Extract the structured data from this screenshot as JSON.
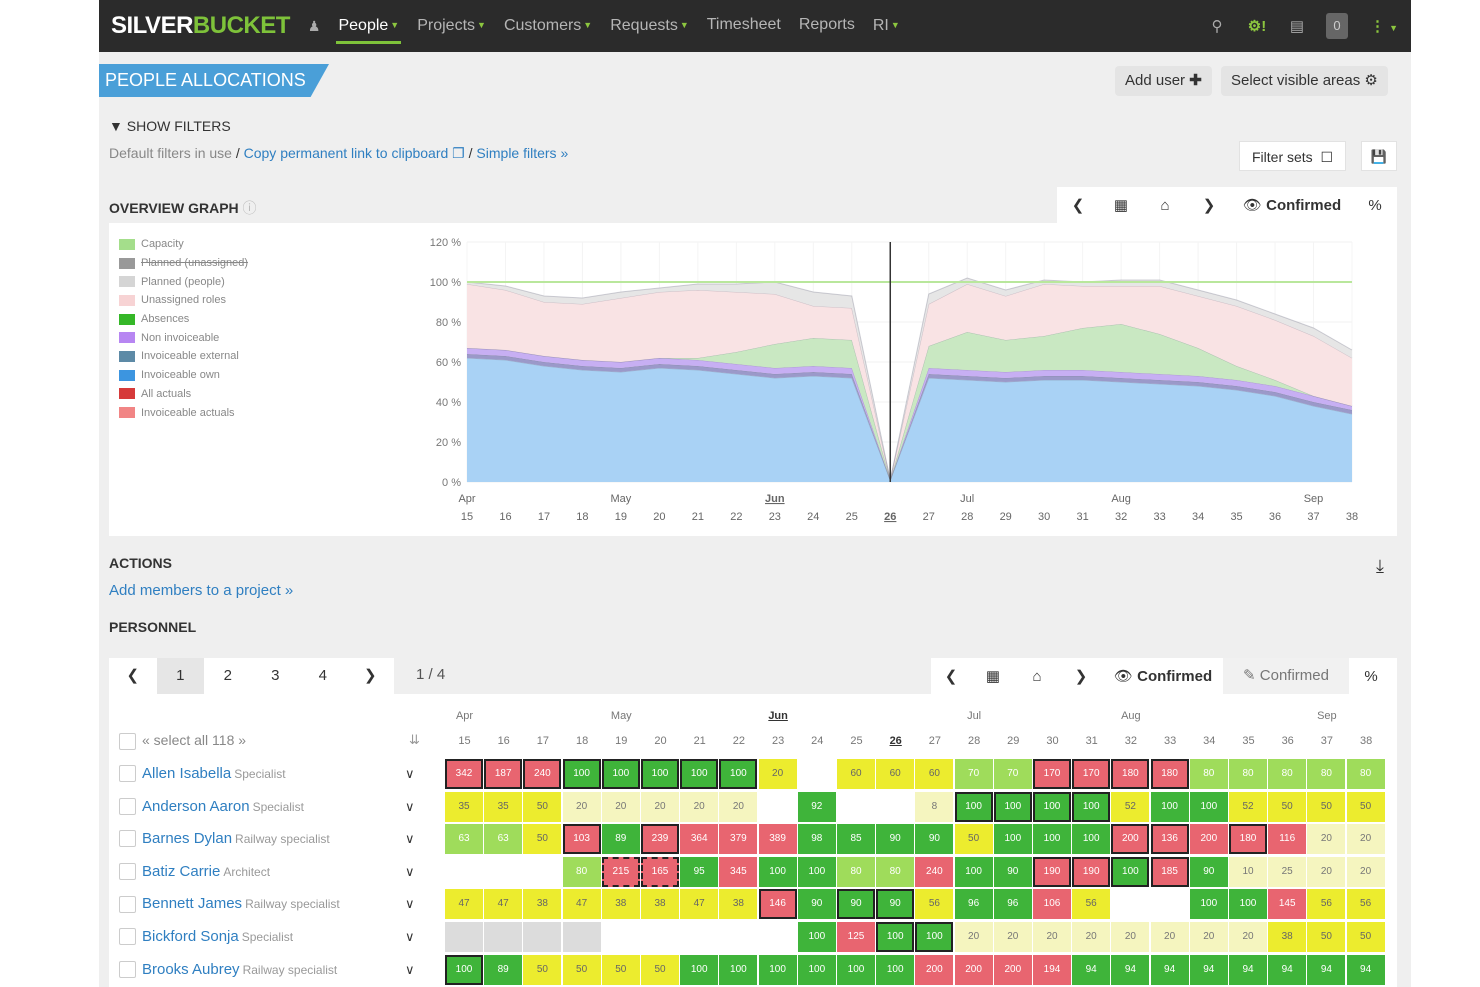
{
  "nav": {
    "logo_a": "SILVER",
    "logo_b": "BUCKET",
    "items": [
      {
        "label": "People",
        "dropdown": true,
        "active": true
      },
      {
        "label": "Projects",
        "dropdown": true
      },
      {
        "label": "Customers",
        "dropdown": true
      },
      {
        "label": "Requests",
        "dropdown": true
      },
      {
        "label": "Timesheet",
        "dropdown": false
      },
      {
        "label": "Reports",
        "dropdown": false
      },
      {
        "label": "RI",
        "dropdown": true
      }
    ],
    "right_icons": [
      "search-icon",
      "settings-alert-icon",
      "book-icon",
      "notifications-count",
      "more-menu-icon"
    ],
    "notification_count": "0"
  },
  "header": {
    "title": "PEOPLE ALLOCATIONS",
    "add_user": "Add user",
    "select_areas": "Select visible areas"
  },
  "filters": {
    "show_filters": "SHOW FILTERS",
    "default_text": "Default filters in use",
    "sep": "/",
    "copy_link": "Copy permanent link to clipboard",
    "simple_filters": "Simple filters »",
    "filter_sets": "Filter sets"
  },
  "overview": {
    "title": "OVERVIEW GRAPH",
    "mode": "Confirmed",
    "percent": "%"
  },
  "chart_data": {
    "type": "area",
    "ylim": [
      0,
      120
    ],
    "y_ticks": [
      "0 %",
      "20 %",
      "40 %",
      "60 %",
      "80 %",
      "100 %",
      "120 %"
    ],
    "weeks": [
      "15",
      "16",
      "17",
      "18",
      "19",
      "20",
      "21",
      "22",
      "23",
      "24",
      "25",
      "26",
      "27",
      "28",
      "29",
      "30",
      "31",
      "32",
      "33",
      "34",
      "35",
      "36",
      "37",
      "38"
    ],
    "months": [
      {
        "label": "Apr",
        "week": "15"
      },
      {
        "label": "May",
        "week": "19"
      },
      {
        "label": "Jun",
        "week": "23"
      },
      {
        "label": "Jul",
        "week": "28"
      },
      {
        "label": "Aug",
        "week": "32"
      },
      {
        "label": "Sep",
        "week": "37"
      }
    ],
    "current_week": "26",
    "capacity": 100,
    "series": [
      {
        "name": "Invoiceable own",
        "color": "#a9d2f5",
        "values": [
          62,
          61,
          58,
          56,
          55,
          57,
          56,
          54,
          52,
          53,
          52,
          1,
          52,
          51,
          50,
          51,
          51,
          50,
          49,
          48,
          46,
          43,
          38,
          34
        ]
      },
      {
        "name": "Invoiceable external",
        "color": "#9b99c9",
        "values": [
          2,
          2,
          2,
          2,
          2,
          2,
          2,
          2,
          2,
          2,
          2,
          0,
          2,
          2,
          2,
          2,
          2,
          2,
          2,
          2,
          2,
          2,
          2,
          2
        ]
      },
      {
        "name": "Non invoiceable",
        "color": "#c7aff3",
        "values": [
          3,
          3,
          3,
          3,
          3,
          3,
          3,
          3,
          3,
          3,
          3,
          0,
          3,
          3,
          3,
          3,
          3,
          3,
          3,
          3,
          3,
          3,
          3,
          2
        ]
      },
      {
        "name": "Absences",
        "color": "#c9e8c2",
        "values": [
          0,
          0,
          0,
          0,
          0,
          0,
          1,
          6,
          12,
          14,
          14,
          0,
          11,
          19,
          16,
          17,
          21,
          24,
          20,
          14,
          7,
          3,
          0,
          0
        ]
      },
      {
        "name": "Unassigned roles",
        "color": "#f9e3e4",
        "values": [
          32,
          30,
          27,
          28,
          32,
          33,
          34,
          30,
          25,
          16,
          16,
          0,
          21,
          24,
          22,
          26,
          21,
          19,
          24,
          26,
          30,
          30,
          30,
          24
        ]
      },
      {
        "name": "Planned (people)",
        "color": "#e6e6e6",
        "values": [
          1,
          2,
          3,
          3,
          3,
          2,
          3,
          4,
          6,
          7,
          6,
          0,
          5,
          3,
          3,
          2,
          2,
          3,
          3,
          3,
          3,
          3,
          4,
          4
        ]
      }
    ],
    "legend": [
      {
        "name": "Capacity",
        "color": "#a4de8b"
      },
      {
        "name": "Planned (unassigned)",
        "color": "#999999",
        "strike": true
      },
      {
        "name": "Planned (people)",
        "color": "#d5d5d5"
      },
      {
        "name": "Unassigned roles",
        "color": "#f7d3d4"
      },
      {
        "name": "Absences",
        "color": "#35b728"
      },
      {
        "name": "Non invoiceable",
        "color": "#b786f2"
      },
      {
        "name": "Invoiceable external",
        "color": "#5d8aa6"
      },
      {
        "name": "Invoiceable own",
        "color": "#3c95e0"
      },
      {
        "name": "All actuals",
        "color": "#d63a3a"
      },
      {
        "name": "Invoiceable actuals",
        "color": "#f18585"
      }
    ]
  },
  "actions": {
    "title": "ACTIONS",
    "add_members": "Add members to a project »"
  },
  "personnel": {
    "title": "PERSONNEL",
    "pages": [
      "1",
      "2",
      "3",
      "4"
    ],
    "current_page": "1",
    "page_count": "1 / 4",
    "mode": "Confirmed",
    "mode2": "Confirmed",
    "percent": "%",
    "select_all": "« select all 118 »",
    "rows": [
      {
        "name": "Allen Isabella",
        "role": "Specialist",
        "cells": [
          "342r",
          "187r",
          "240r",
          "100G",
          "100G",
          "100G",
          "100G",
          "100G",
          "20y",
          "-",
          "60y",
          "60y",
          "60y",
          "70l",
          "70l",
          "170r",
          "170r",
          "180r",
          "180r",
          "80l",
          "80l",
          "80l",
          "80l",
          "80l"
        ],
        "hl": [
          1,
          1,
          1,
          1,
          1,
          1,
          1,
          1,
          0,
          0,
          0,
          0,
          0,
          0,
          0,
          1,
          1,
          1,
          1,
          0,
          0,
          0,
          0,
          0
        ]
      },
      {
        "name": "Anderson Aaron",
        "role": "Specialist",
        "cells": [
          "35y",
          "35y",
          "50y",
          "20p",
          "20p",
          "20p",
          "20p",
          "20p",
          "-",
          "92G",
          "-",
          "-",
          "8p",
          "100G",
          "100G",
          "100G",
          "100G",
          "52y",
          "100G",
          "100G",
          "52y",
          "50y",
          "50y",
          "50y"
        ],
        "hl": [
          0,
          0,
          0,
          0,
          0,
          0,
          0,
          0,
          0,
          0,
          0,
          0,
          0,
          1,
          1,
          1,
          1,
          0,
          0,
          0,
          0,
          0,
          0,
          0
        ]
      },
      {
        "name": "Barnes Dylan",
        "role": "Railway specialist",
        "cells": [
          "63l",
          "63l",
          "50y",
          "103r",
          "89G",
          "239r",
          "364r",
          "379r",
          "389r",
          "98G",
          "85G",
          "90G",
          "90G",
          "50y",
          "100G",
          "100G",
          "100G",
          "200r",
          "136r",
          "200r",
          "180r",
          "116r",
          "20p",
          "20p"
        ],
        "hl": [
          0,
          0,
          0,
          1,
          0,
          1,
          0,
          0,
          0,
          0,
          0,
          0,
          0,
          0,
          0,
          0,
          0,
          1,
          1,
          0,
          1,
          0,
          0,
          0
        ]
      },
      {
        "name": "Batiz Carrie",
        "role": "Architect",
        "cells": [
          "-",
          "-",
          "-",
          "80l",
          "215r",
          "165r",
          "95G",
          "345r",
          "100G",
          "100G",
          "80l",
          "80l",
          "240r",
          "100G",
          "90G",
          "190r",
          "190r",
          "100G",
          "185r",
          "90G",
          "10p",
          "25p",
          "20p",
          "20p"
        ],
        "hl": [
          0,
          0,
          0,
          0,
          2,
          2,
          0,
          0,
          0,
          0,
          0,
          0,
          0,
          0,
          0,
          1,
          1,
          1,
          1,
          0,
          0,
          0,
          0,
          0
        ]
      },
      {
        "name": "Bennett James",
        "role": "Railway specialist",
        "cells": [
          "47y",
          "47y",
          "38y",
          "47y",
          "38y",
          "38y",
          "47y",
          "38y",
          "146r",
          "90G",
          "90G",
          "90G",
          "56y",
          "96G",
          "96G",
          "106r",
          "56y",
          "-",
          "-",
          "100G",
          "100G",
          "145r",
          "56y",
          "56y"
        ],
        "hl": [
          0,
          0,
          0,
          0,
          0,
          0,
          0,
          0,
          1,
          0,
          1,
          1,
          0,
          0,
          0,
          0,
          0,
          0,
          0,
          0,
          0,
          0,
          0,
          0
        ]
      },
      {
        "name": "Bickford Sonja",
        "role": "Specialist",
        "cells": [
          "g",
          "g",
          "g",
          "g",
          "-",
          "-",
          "-",
          "-",
          "-",
          "100G",
          "125r",
          "100G",
          "100G",
          "20p",
          "20p",
          "20p",
          "20p",
          "20p",
          "20p",
          "20p",
          "20p",
          "38y",
          "50y",
          "50y"
        ],
        "hl": [
          0,
          0,
          0,
          0,
          0,
          0,
          0,
          0,
          0,
          0,
          0,
          1,
          1,
          0,
          0,
          0,
          0,
          0,
          0,
          0,
          0,
          0,
          0,
          0
        ]
      },
      {
        "name": "Brooks Aubrey",
        "role": "Railway specialist",
        "cells": [
          "100G",
          "89G",
          "50y",
          "50y",
          "50y",
          "50y",
          "100G",
          "100G",
          "100G",
          "100G",
          "100G",
          "100G",
          "200r",
          "200r",
          "200r",
          "194r",
          "94G",
          "94G",
          "94G",
          "94G",
          "94G",
          "94G",
          "94G",
          "94G"
        ],
        "hl": [
          1,
          0,
          0,
          0,
          0,
          0,
          0,
          0,
          0,
          0,
          0,
          0,
          0,
          0,
          0,
          0,
          0,
          0,
          0,
          0,
          0,
          0,
          0,
          0
        ]
      }
    ]
  },
  "colors": {
    "accent": "#7ec23a",
    "title_bg": "#4a9fd8",
    "link": "#2f7fc1",
    "red": "#e86570",
    "green": "#3fb43a",
    "yellow": "#ecec2e",
    "lightgreen": "#9fdc5b",
    "pale": "#f5f5bf",
    "grey": "#dcdcdc"
  }
}
